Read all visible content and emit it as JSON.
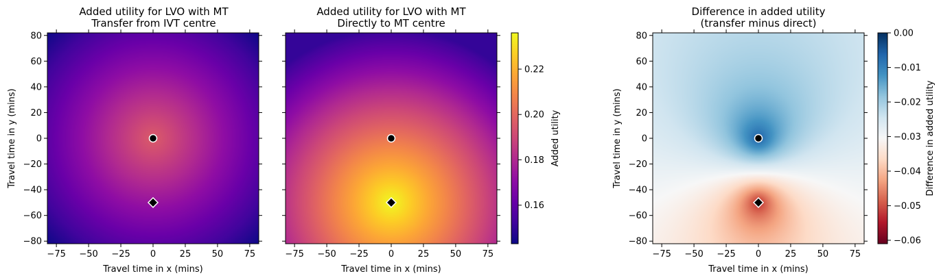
{
  "figure": {
    "panels": [
      {
        "title_line1": "Added utility for LVO with MT",
        "title_line2": "Transfer from IVT centre",
        "xlabel": "Travel time in x (mins)",
        "ylabel": "Travel time in y (mins)"
      },
      {
        "title_line1": "Added utility for LVO with MT",
        "title_line2": "Directly to MT centre",
        "xlabel": "Travel time in x (mins)",
        "ylabel": ""
      },
      {
        "title_line1": "Difference in added utility",
        "title_line2": "(transfer minus direct)",
        "xlabel": "Travel time in x (mins)",
        "ylabel": "Travel time in y (mins)"
      }
    ],
    "colorbars": [
      {
        "label": "Added utility",
        "colormap": "plasma",
        "ticks": [
          "0.16",
          "0.18",
          "0.20",
          "0.22"
        ]
      },
      {
        "label": "Difference in added utility",
        "colormap": "RdBu",
        "ticks": [
          "0.00",
          "−0.01",
          "−0.02",
          "−0.03",
          "−0.04",
          "−0.05",
          "−0.06"
        ]
      }
    ],
    "x_ticks": [
      "−75",
      "−50",
      "−25",
      "0",
      "25",
      "50",
      "75"
    ],
    "y_ticks": [
      "80",
      "60",
      "40",
      "20",
      "0",
      "−20",
      "−40",
      "−60",
      "−80"
    ]
  },
  "chart_data": [
    {
      "type": "heatmap",
      "title": "Added utility for LVO with MT\nTransfer from IVT centre",
      "xlabel": "Travel time in x (mins)",
      "ylabel": "Travel time in y (mins)",
      "xlim": [
        -82,
        82
      ],
      "ylim": [
        -82,
        82
      ],
      "colorbar_range": [
        0.143,
        0.236
      ],
      "markers": [
        {
          "symbol": "circle",
          "x": 0,
          "y": 0
        },
        {
          "symbol": "diamond",
          "x": 0,
          "y": -50
        }
      ],
      "value_at_centre": 0.196,
      "value_at_corners": 0.143
    },
    {
      "type": "heatmap",
      "title": "Added utility for LVO with MT\nDirectly to MT centre",
      "xlabel": "Travel time in x (mins)",
      "xlim": [
        -82,
        82
      ],
      "ylim": [
        -82,
        82
      ],
      "colorbar_range": [
        0.143,
        0.236
      ],
      "markers": [
        {
          "symbol": "circle",
          "x": 0,
          "y": 0
        },
        {
          "symbol": "diamond",
          "x": 0,
          "y": -50
        }
      ],
      "value_at_diamond": 0.236,
      "value_at_top_corners": 0.15
    },
    {
      "type": "heatmap",
      "title": "Difference in added utility\n(transfer minus direct)",
      "xlabel": "Travel time in x (mins)",
      "ylabel": "Travel time in y (mins)",
      "xlim": [
        -82,
        82
      ],
      "ylim": [
        -82,
        82
      ],
      "colorbar_range": [
        -0.061,
        0.0
      ],
      "colorbar_label": "Difference in added utility",
      "markers": [
        {
          "symbol": "circle",
          "x": 0,
          "y": 0
        },
        {
          "symbol": "diamond",
          "x": 0,
          "y": -50
        }
      ],
      "value_above_circle": 0.0,
      "value_below_diamond": -0.061
    }
  ]
}
